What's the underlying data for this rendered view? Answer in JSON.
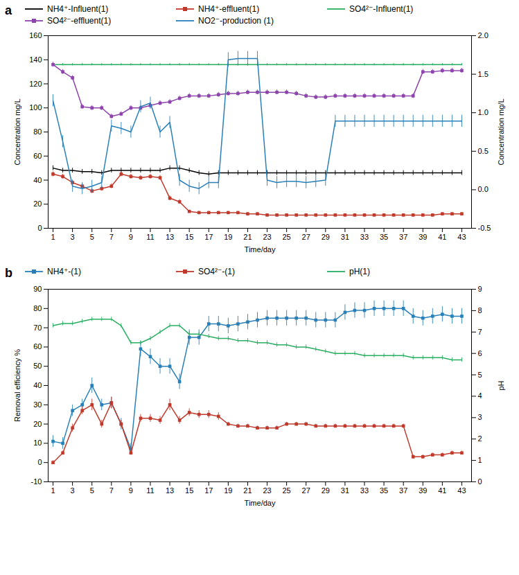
{
  "chart_data": [
    {
      "type": "line",
      "title": "a",
      "x": [
        1,
        2,
        3,
        4,
        5,
        6,
        7,
        8,
        9,
        10,
        11,
        12,
        13,
        14,
        15,
        16,
        17,
        18,
        19,
        20,
        21,
        22,
        23,
        24,
        25,
        26,
        27,
        28,
        29,
        30,
        31,
        32,
        33,
        34,
        35,
        36,
        37,
        38,
        39,
        40,
        41,
        42,
        43
      ],
      "xlabel": "Time/day",
      "ylabel": "Concentration mg/L",
      "y2label": "Concentration mg/L",
      "xlim": [
        0.5,
        44
      ],
      "xticks": [
        1,
        3,
        5,
        7,
        9,
        11,
        13,
        15,
        17,
        19,
        21,
        23,
        25,
        27,
        29,
        31,
        33,
        35,
        37,
        39,
        41,
        43
      ],
      "ylim": [
        0,
        160
      ],
      "yticks": [
        0,
        20,
        40,
        60,
        80,
        100,
        120,
        140,
        160
      ],
      "y2lim": [
        -0.5,
        2.0
      ],
      "y2ticks": [
        -0.5,
        {
          "value": 0,
          "label": "0.0"
        },
        0.5,
        {
          "value": 1,
          "label": "1.0"
        },
        1.5,
        {
          "value": 2,
          "label": "2.0"
        }
      ],
      "grid": false,
      "legend": "top",
      "series": [
        {
          "name": "NH4⁺-Influent(1)",
          "color": "#000000",
          "values": [
            50,
            48,
            48,
            47,
            47,
            46,
            48,
            48,
            48,
            48,
            48,
            48,
            50,
            50,
            48,
            46,
            45,
            46,
            46,
            46,
            46,
            46,
            46,
            46,
            46,
            46,
            46,
            46,
            46,
            46,
            46,
            46,
            46,
            46,
            46,
            46,
            46,
            46,
            46,
            46,
            46,
            46,
            46
          ],
          "errors": [
            2,
            2,
            2,
            2,
            2,
            2,
            2,
            2,
            2,
            2,
            2,
            2,
            2,
            2,
            2,
            2,
            2,
            2,
            2,
            2,
            2,
            2,
            2,
            2,
            2,
            2,
            2,
            2,
            2,
            2,
            2,
            2,
            2,
            2,
            2,
            2,
            2,
            2,
            2,
            2,
            2,
            2,
            2
          ]
        },
        {
          "name": "NH4⁺-effluent(1)",
          "color": "#c0392b",
          "marker": "square",
          "values": [
            45,
            43,
            38,
            35,
            31,
            33,
            35,
            45,
            43,
            42,
            43,
            42,
            25,
            22,
            14,
            13,
            13,
            13,
            13,
            13,
            12,
            12,
            11,
            11,
            11,
            11,
            11,
            11,
            11,
            11,
            11,
            11,
            11,
            11,
            11,
            11,
            11,
            11,
            11,
            11,
            12,
            12,
            12
          ],
          "errors": [
            2,
            2,
            2,
            2,
            2,
            2,
            2,
            2,
            2,
            2,
            2,
            2,
            2,
            2,
            1,
            1,
            1,
            1,
            1,
            1,
            1,
            1,
            1,
            1,
            1,
            1,
            1,
            1,
            1,
            1,
            1,
            1,
            1,
            1,
            1,
            1,
            1,
            1,
            1,
            1,
            1,
            1,
            1
          ]
        },
        {
          "name": "SO4²⁻-Influent(1)",
          "color": "#27ae60",
          "values": [
            136,
            136,
            136,
            136,
            136,
            136,
            136,
            136,
            136,
            136,
            136,
            136,
            136,
            136,
            136,
            136,
            136,
            136,
            136,
            136,
            136,
            136,
            136,
            136,
            136,
            136,
            136,
            136,
            136,
            136,
            136,
            136,
            136,
            136,
            136,
            136,
            136,
            136,
            136,
            136,
            136,
            136,
            136
          ],
          "errors": [
            1,
            1,
            1,
            1,
            1,
            1,
            1,
            1,
            1,
            1,
            1,
            1,
            1,
            1,
            1,
            1,
            1,
            1,
            1,
            1,
            1,
            1,
            1,
            1,
            1,
            1,
            1,
            1,
            1,
            1,
            1,
            1,
            1,
            1,
            1,
            1,
            1,
            1,
            1,
            1,
            1,
            1,
            1
          ]
        },
        {
          "name": "SO4²⁻-effluent(1)",
          "color": "#8e44ad",
          "marker": "square",
          "values": [
            136,
            130,
            125,
            101,
            100,
            100,
            93,
            95,
            100,
            100,
            102,
            104,
            105,
            108,
            110,
            110,
            110,
            111,
            112,
            112,
            113,
            113,
            113,
            113,
            113,
            112,
            110,
            109,
            109,
            110,
            110,
            110,
            110,
            110,
            110,
            110,
            110,
            110,
            130,
            130,
            131,
            131,
            131
          ],
          "errors": [
            2,
            2,
            2,
            2,
            2,
            2,
            2,
            2,
            2,
            2,
            2,
            2,
            2,
            2,
            2,
            2,
            2,
            2,
            2,
            2,
            2,
            2,
            2,
            2,
            2,
            2,
            2,
            2,
            2,
            2,
            2,
            2,
            2,
            2,
            2,
            2,
            2,
            2,
            2,
            2,
            2,
            2,
            2
          ]
        },
        {
          "name": "NO2⁻-production (1)",
          "color": "#2980b9",
          "values": [
            106,
            72,
            35,
            33,
            35,
            38,
            85,
            83,
            80,
            101,
            104,
            80,
            88,
            40,
            35,
            33,
            38,
            38,
            140,
            141,
            141,
            141,
            40,
            38,
            39,
            39,
            38,
            39,
            40,
            89,
            89,
            89,
            89,
            89,
            89,
            89,
            89,
            89,
            89,
            89,
            89,
            89,
            89
          ],
          "errors": [
            5,
            5,
            5,
            5,
            5,
            5,
            5,
            5,
            5,
            5,
            5,
            5,
            5,
            5,
            5,
            5,
            5,
            5,
            6,
            6,
            6,
            6,
            5,
            5,
            5,
            5,
            5,
            5,
            5,
            5,
            5,
            5,
            5,
            5,
            5,
            5,
            5,
            5,
            5,
            5,
            5,
            5,
            5
          ]
        }
      ]
    },
    {
      "type": "line",
      "title": "b",
      "x": [
        1,
        2,
        3,
        4,
        5,
        6,
        7,
        8,
        9,
        10,
        11,
        12,
        13,
        14,
        15,
        16,
        17,
        18,
        19,
        20,
        21,
        22,
        23,
        24,
        25,
        26,
        27,
        28,
        29,
        30,
        31,
        32,
        33,
        34,
        35,
        36,
        37,
        38,
        39,
        40,
        41,
        42,
        43
      ],
      "xlabel": "Time/day",
      "ylabel": "Removal efficiency %",
      "y2label": "pH",
      "xlim": [
        0.5,
        44
      ],
      "xticks": [
        1,
        3,
        5,
        7,
        9,
        11,
        13,
        15,
        17,
        19,
        21,
        23,
        25,
        27,
        29,
        31,
        33,
        35,
        37,
        39,
        41,
        43
      ],
      "ylim": [
        -10,
        90
      ],
      "yticks": [
        -10,
        0,
        10,
        20,
        30,
        40,
        50,
        60,
        70,
        80,
        90
      ],
      "y2lim": [
        0,
        9
      ],
      "y2ticks": [
        0,
        1,
        2,
        3,
        4,
        5,
        6,
        7,
        8,
        9
      ],
      "grid": false,
      "legend": "top",
      "series": [
        {
          "name": "NH4⁺-(1)",
          "color": "#2980b9",
          "marker": "square",
          "values": [
            11,
            10,
            27,
            30,
            40,
            30,
            31,
            20,
            7,
            59,
            55,
            50,
            50,
            42,
            65,
            65,
            72,
            72,
            71,
            72,
            73,
            74,
            75,
            75,
            75,
            75,
            75,
            74,
            74,
            74,
            78,
            79,
            79,
            80,
            80,
            80,
            80,
            76,
            75,
            76,
            77,
            76,
            76
          ],
          "errors": [
            3,
            3,
            3,
            3,
            4,
            3,
            3,
            3,
            3,
            4,
            4,
            4,
            4,
            4,
            4,
            4,
            4,
            4,
            4,
            4,
            4,
            4,
            4,
            4,
            4,
            4,
            4,
            4,
            4,
            4,
            4,
            4,
            4,
            4,
            4,
            4,
            4,
            4,
            4,
            4,
            4,
            4,
            4
          ]
        },
        {
          "name": "SO4²⁻-(1)",
          "color": "#c0392b",
          "marker": "square",
          "values": [
            0,
            5,
            18,
            27,
            30,
            20,
            31,
            20,
            5,
            23,
            23,
            22,
            30,
            22,
            26,
            25,
            25,
            24,
            20,
            19,
            19,
            18,
            18,
            18,
            20,
            20,
            20,
            19,
            19,
            19,
            19,
            19,
            19,
            19,
            19,
            19,
            19,
            3,
            3,
            4,
            4,
            5,
            5
          ],
          "errors": [
            1,
            1,
            2,
            2,
            3,
            2,
            3,
            2,
            1,
            2,
            2,
            2,
            3,
            2,
            2,
            2,
            2,
            2,
            1,
            1,
            1,
            1,
            1,
            1,
            1,
            1,
            1,
            1,
            1,
            1,
            1,
            1,
            1,
            1,
            1,
            1,
            1,
            1,
            1,
            1,
            1,
            1,
            1
          ]
        },
        {
          "name": "pH(1)",
          "color": "#27ae60",
          "axis": "y2",
          "values": [
            7.3,
            7.4,
            7.4,
            7.5,
            7.6,
            7.6,
            7.6,
            7.3,
            6.5,
            6.5,
            6.7,
            7.0,
            7.3,
            7.3,
            6.9,
            6.9,
            6.8,
            6.7,
            6.7,
            6.6,
            6.6,
            6.5,
            6.5,
            6.4,
            6.4,
            6.3,
            6.3,
            6.2,
            6.1,
            6.0,
            6.0,
            6.0,
            5.9,
            5.9,
            5.9,
            5.9,
            5.9,
            5.8,
            5.8,
            5.8,
            5.8,
            5.7,
            5.7
          ],
          "errors": [
            0.1,
            0.1,
            0.1,
            0.1,
            0.1,
            0.1,
            0.1,
            0.1,
            0.1,
            0.1,
            0.1,
            0.1,
            0.1,
            0.1,
            0.1,
            0.1,
            0.1,
            0.1,
            0.1,
            0.1,
            0.1,
            0.1,
            0.1,
            0.1,
            0.1,
            0.1,
            0.1,
            0.1,
            0.1,
            0.1,
            0.1,
            0.1,
            0.1,
            0.1,
            0.1,
            0.1,
            0.1,
            0.1,
            0.1,
            0.1,
            0.1,
            0.1,
            0.1
          ]
        }
      ]
    }
  ]
}
